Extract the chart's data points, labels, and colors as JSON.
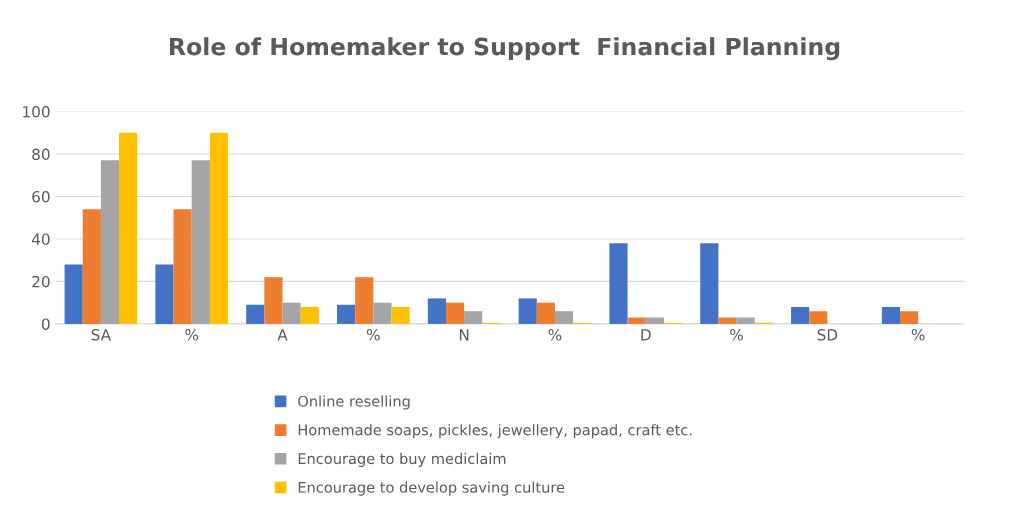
{
  "chart_data": {
    "type": "bar",
    "title": "Role of Homemaker to Support  Financial Planning",
    "categories": [
      "SA",
      "%",
      "A",
      "%",
      "N",
      "%",
      "D",
      "%",
      "SD",
      "%"
    ],
    "series": [
      {
        "name": "Online reselling",
        "color": "#4472c4",
        "values": [
          28,
          28,
          9,
          9,
          12,
          12,
          38,
          38,
          8,
          8
        ]
      },
      {
        "name": "Homemade soaps, pickles, jewellery, papad, craft etc.",
        "color": "#ed7d31",
        "values": [
          54,
          54,
          22,
          22,
          10,
          10,
          3,
          3,
          6,
          6
        ]
      },
      {
        "name": "Encourage to buy mediclaim",
        "color": "#a5a5a5",
        "values": [
          77,
          77,
          10,
          10,
          6,
          6,
          3,
          3,
          0,
          0
        ]
      },
      {
        "name": "Encourage to develop saving culture",
        "color": "#ffc000",
        "values": [
          90,
          90,
          8,
          8,
          0.5,
          0.5,
          0.5,
          0.5,
          0,
          0
        ]
      }
    ],
    "ylim": [
      0,
      100
    ],
    "yticks": [
      0,
      20,
      40,
      60,
      80,
      100
    ],
    "grid": "y",
    "legend": "bottom"
  }
}
